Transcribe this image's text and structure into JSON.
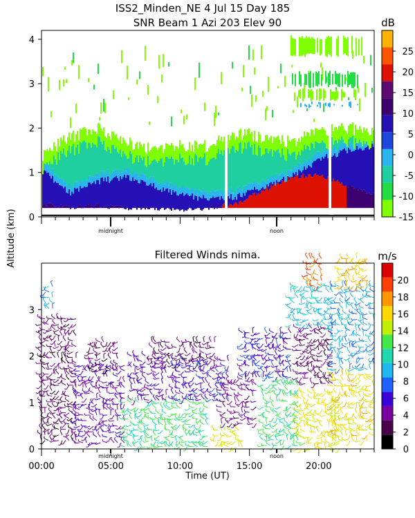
{
  "figure": {
    "title_line1": "ISS2_Minden_NE    4 Jul 15 Day 185",
    "title_line2": "SNR Beam 1 Azi 203 Elev 90",
    "shared_ylabel": "Altitude (km)",
    "time_xlabel": "Time (UT)",
    "time_ticks": [
      "00:00",
      "05:00",
      "10:00",
      "15:00",
      "20:00"
    ],
    "day_markers": [
      "midnight",
      "noon"
    ]
  },
  "chart_data": [
    {
      "type": "heatmap",
      "name": "snr",
      "title": "SNR Beam 1 Azi 203 Elev 90",
      "x_unit": "hours UT",
      "xlim": [
        0,
        24
      ],
      "ylim": [
        0,
        4.2
      ],
      "yticks": [
        0,
        1,
        2,
        3,
        4
      ],
      "colorbar": {
        "unit": "dB",
        "range": [
          -15,
          30
        ],
        "ticks": [
          -15,
          -10,
          -5,
          0,
          5,
          10,
          15,
          20,
          25
        ],
        "colors": [
          "#7fff00",
          "#22dd44",
          "#1fcf9f",
          "#2ab5ef",
          "#1c49dc",
          "#2410b5",
          "#3c006f",
          "#5c0c70",
          "#dd1100",
          "#ff5500",
          "#ffb300"
        ]
      },
      "note": "approximate depiction of echo intensity vs time and altitude",
      "contours": [
        {
          "name": "echo_top",
          "x": [
            0,
            2,
            4,
            6,
            8,
            10,
            12,
            14,
            16,
            18,
            20,
            22,
            24
          ],
          "y": [
            1.4,
            1.8,
            2.0,
            1.7,
            1.5,
            1.6,
            1.6,
            1.9,
            1.8,
            1.7,
            1.9,
            2.0,
            1.9
          ]
        },
        {
          "name": "blue_top",
          "x": [
            0,
            2,
            4,
            6,
            8,
            10,
            12,
            14,
            16,
            18,
            20,
            22,
            24
          ],
          "y": [
            1.05,
            0.55,
            0.8,
            0.9,
            0.7,
            0.5,
            0.4,
            0.45,
            0.7,
            0.9,
            1.3,
            1.5,
            1.6
          ]
        },
        {
          "name": "strong_top",
          "x": [
            0,
            2,
            4,
            6,
            8,
            10,
            12,
            14,
            16,
            18,
            20,
            22,
            24
          ],
          "y": [
            0.3,
            0.2,
            0.25,
            0.2,
            0.2,
            0.15,
            0.2,
            0.3,
            0.6,
            0.9,
            0.95,
            0.7,
            0.5
          ]
        }
      ]
    },
    {
      "type": "scatter",
      "name": "winds",
      "title": "Filtered Winds nima.",
      "x_unit": "hours UT",
      "xlim": [
        0,
        24
      ],
      "ylim": [
        0,
        4.0
      ],
      "yticks": [
        0,
        1,
        2,
        3
      ],
      "xticks": [
        0,
        5,
        10,
        15,
        20
      ],
      "xticklabels": [
        "00:00",
        "05:00",
        "10:00",
        "15:00",
        "20:00"
      ],
      "xlabel": "Time (UT)",
      "colorbar": {
        "unit": "m/s",
        "range": [
          0,
          22
        ],
        "ticks": [
          0,
          2,
          4,
          6,
          8,
          10,
          12,
          14,
          16,
          18,
          20
        ],
        "colors": [
          "#000000",
          "#4a004a",
          "#7a00a0",
          "#3a00d8",
          "#2060ff",
          "#20b8f0",
          "#20d8b0",
          "#44e84a",
          "#bff000",
          "#ffd800",
          "#ff9800",
          "#ff4000",
          "#dd0000"
        ]
      },
      "note": "wind barbs; speed in m/s shown by colour",
      "regions": [
        {
          "x0": 0.0,
          "x1": 2.5,
          "y0": 0.1,
          "y1": 2.8,
          "speed": 3
        },
        {
          "x0": 0.3,
          "x1": 1.0,
          "y0": 3.0,
          "y1": 3.5,
          "speed": 9
        },
        {
          "x0": 2.5,
          "x1": 6.0,
          "y0": 0.1,
          "y1": 1.8,
          "speed": 5
        },
        {
          "x0": 3.5,
          "x1": 5.5,
          "y0": 1.6,
          "y1": 2.3,
          "speed": 3
        },
        {
          "x0": 6.0,
          "x1": 12.0,
          "y0": 0.0,
          "y1": 1.0,
          "speed": 12
        },
        {
          "x0": 6.5,
          "x1": 9.0,
          "y0": 1.0,
          "y1": 2.0,
          "speed": 5
        },
        {
          "x0": 8.0,
          "x1": 12.5,
          "y0": 1.8,
          "y1": 2.3,
          "speed": 3
        },
        {
          "x0": 9.5,
          "x1": 13.5,
          "y0": 1.0,
          "y1": 1.9,
          "speed": 6
        },
        {
          "x0": 12.5,
          "x1": 14.5,
          "y0": 0.0,
          "y1": 0.4,
          "speed": 15
        },
        {
          "x0": 13.0,
          "x1": 15.5,
          "y0": 0.5,
          "y1": 1.5,
          "speed": 4
        },
        {
          "x0": 14.5,
          "x1": 18.0,
          "y0": 1.5,
          "y1": 2.5,
          "speed": 6
        },
        {
          "x0": 16.0,
          "x1": 18.5,
          "y0": 0.0,
          "y1": 1.5,
          "speed": 12
        },
        {
          "x0": 18.5,
          "x1": 21.0,
          "y0": 1.3,
          "y1": 2.6,
          "speed": 3
        },
        {
          "x0": 18.0,
          "x1": 21.0,
          "y0": 2.6,
          "y1": 3.5,
          "speed": 10
        },
        {
          "x0": 19.2,
          "x1": 20.2,
          "y0": 3.5,
          "y1": 4.1,
          "speed": 19
        },
        {
          "x0": 18.5,
          "x1": 21.5,
          "y0": 0.0,
          "y1": 1.2,
          "speed": 15
        },
        {
          "x0": 21.0,
          "x1": 24.0,
          "y0": 0.1,
          "y1": 1.6,
          "speed": 16
        },
        {
          "x0": 21.0,
          "x1": 24.0,
          "y0": 1.6,
          "y1": 3.5,
          "speed": 9
        },
        {
          "x0": 21.5,
          "x1": 23.5,
          "y0": 3.5,
          "y1": 4.1,
          "speed": 17
        }
      ]
    }
  ]
}
